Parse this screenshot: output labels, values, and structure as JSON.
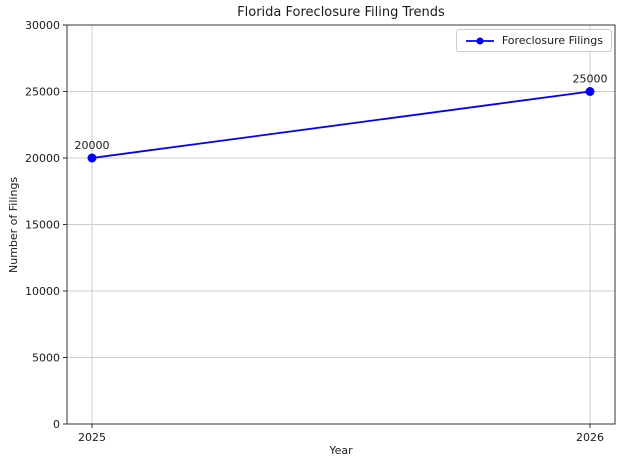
{
  "figure": {
    "background": "#ffffff"
  },
  "chart_data": {
    "type": "line",
    "title": "Florida Foreclosure Filing Trends",
    "xlabel": "Year",
    "ylabel": "Number of Filings",
    "x": [
      2025,
      2026
    ],
    "xticks": [
      2025,
      2026
    ],
    "yticks": [
      0,
      5000,
      10000,
      15000,
      20000,
      25000,
      30000
    ],
    "ylim": [
      0,
      30000
    ],
    "grid": true,
    "legend": {
      "position": "upper right",
      "label": "Foreclosure Filings"
    },
    "series": [
      {
        "name": "Foreclosure Filings",
        "color": "#0000ff",
        "marker": "circle",
        "values": [
          20000,
          25000
        ]
      }
    ],
    "annotations": [
      {
        "x": 2025,
        "y": 20000,
        "text": "20000"
      },
      {
        "x": 2026,
        "y": 25000,
        "text": "25000"
      }
    ],
    "style": {
      "grid_color": "#cccccc",
      "spine_color": "#333333",
      "text_color": "#1a1a1a"
    }
  }
}
